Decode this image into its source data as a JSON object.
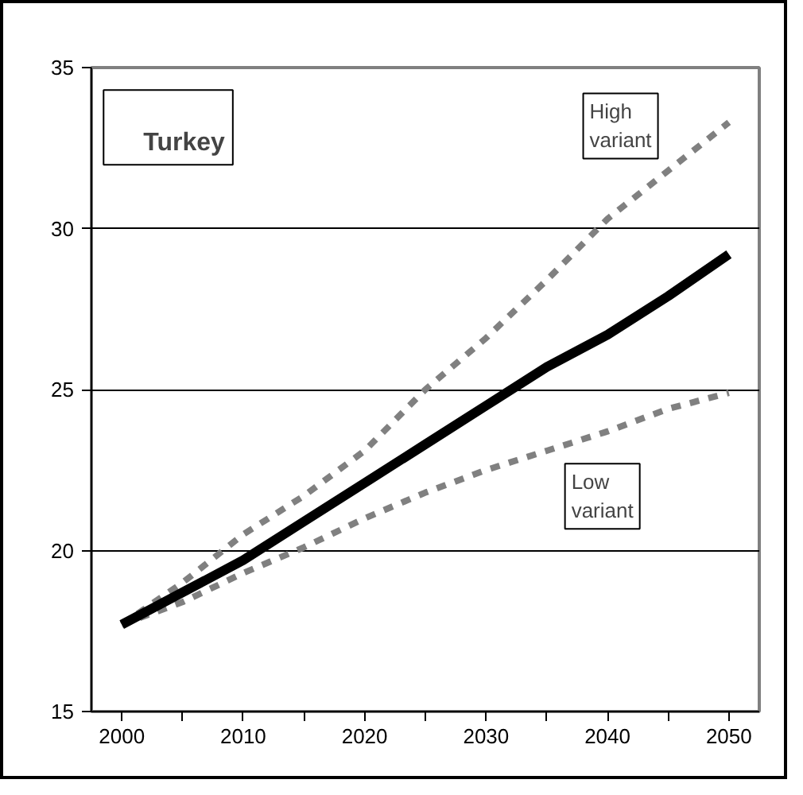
{
  "chart_data": {
    "type": "line",
    "title": "Turkey",
    "categories": [
      "2000",
      null,
      "2010",
      null,
      "2020",
      null,
      "2030",
      null,
      "2040",
      null,
      "2050"
    ],
    "series": [
      {
        "name": "High variant",
        "color": "#808080",
        "line_style": "dashed",
        "values": [
          17.7,
          19.0,
          20.5,
          21.7,
          23.1,
          25.0,
          26.6,
          28.4,
          30.3,
          31.8,
          33.3
        ]
      },
      {
        "name": "Low variant",
        "color": "#808080",
        "line_style": "dashed",
        "values": [
          17.7,
          18.4,
          19.3,
          20.1,
          21.0,
          21.8,
          22.5,
          23.1,
          23.7,
          24.4,
          24.9
        ]
      },
      {
        "color": "#000000",
        "line_style": "solid",
        "values": [
          17.7,
          18.7,
          19.7,
          20.9,
          22.1,
          23.3,
          24.5,
          25.7,
          26.7,
          27.9,
          29.2
        ]
      }
    ],
    "ylim": [
      15,
      35
    ],
    "yticks": [
      15,
      20,
      25,
      30,
      35
    ],
    "grid": "y",
    "legend": false,
    "marker": "none"
  }
}
